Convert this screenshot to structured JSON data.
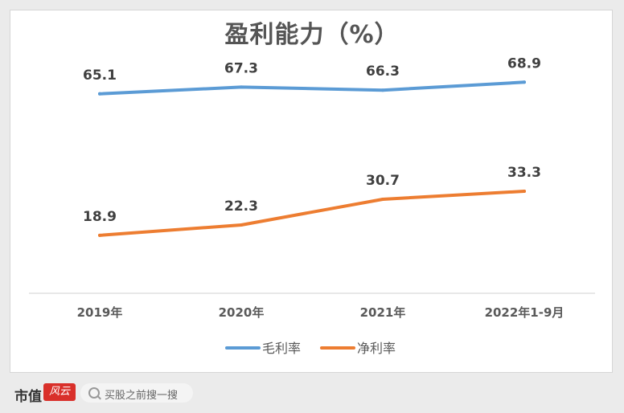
{
  "chart_data": {
    "type": "line",
    "title": "盈利能力（%）",
    "categories": [
      "2019年",
      "2020年",
      "2021年",
      "2022年1-9月"
    ],
    "series": [
      {
        "name": "毛利率",
        "values": [
          65.1,
          67.3,
          66.3,
          68.9
        ],
        "color": "#5b9bd5"
      },
      {
        "name": "净利率",
        "values": [
          18.9,
          22.3,
          30.7,
          33.3
        ],
        "color": "#ed7d31"
      }
    ],
    "ylim": [
      0,
      80
    ],
    "grid": false,
    "legend": "bottom"
  },
  "footer": {
    "logo": "市值",
    "logo_mark": "风云",
    "search_placeholder": "买股之前搜一搜"
  }
}
